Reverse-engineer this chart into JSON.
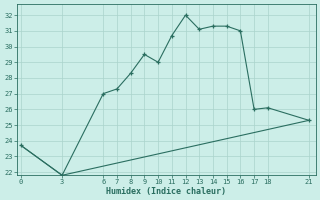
{
  "xlabel": "Humidex (Indice chaleur)",
  "line1_x": [
    0,
    3,
    6,
    7,
    8,
    9,
    10,
    11,
    12,
    13,
    14,
    15,
    16,
    17,
    18,
    21
  ],
  "line1_y": [
    23.7,
    21.8,
    27.0,
    27.3,
    28.3,
    29.5,
    29.0,
    30.7,
    32.0,
    31.1,
    31.3,
    31.3,
    31.0,
    26.0,
    26.1,
    25.3
  ],
  "line2_x": [
    0,
    3,
    21
  ],
  "line2_y": [
    23.7,
    21.8,
    25.3
  ],
  "line_color": "#2a6e60",
  "xlim": [
    -0.3,
    21.5
  ],
  "ylim": [
    21.8,
    32.7
  ],
  "yticks": [
    22,
    23,
    24,
    25,
    26,
    27,
    28,
    29,
    30,
    31,
    32
  ],
  "xticks": [
    0,
    3,
    6,
    7,
    8,
    9,
    10,
    11,
    12,
    13,
    14,
    15,
    16,
    17,
    18,
    21
  ],
  "bg_color": "#cceee8",
  "grid_color": "#aad4cc"
}
